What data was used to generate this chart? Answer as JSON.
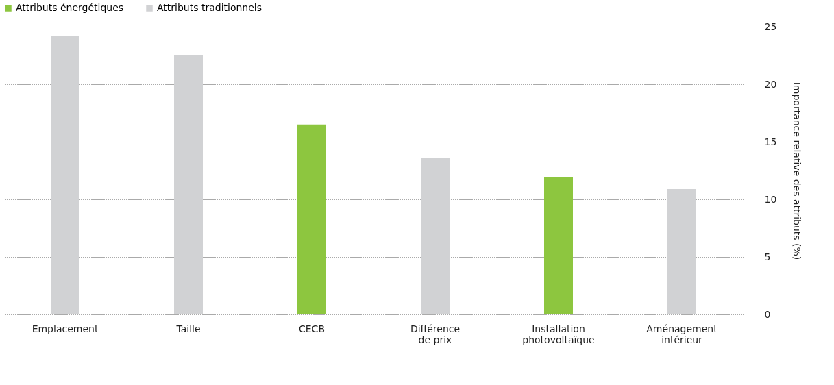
{
  "chart_data": {
    "type": "bar",
    "categories": [
      "Emplacement",
      "Taille",
      "CECB",
      "Différence de prix",
      "Installation photovoltaïque",
      "Aménagement intérieur"
    ],
    "series": [
      {
        "name": "Attributs énergétiques",
        "color": "#8dc63f",
        "values": [
          null,
          null,
          16.5,
          null,
          11.9,
          null
        ]
      },
      {
        "name": "Attributs traditionnels",
        "color": "#d1d2d4",
        "values": [
          24.2,
          22.5,
          null,
          13.6,
          null,
          10.9
        ]
      }
    ],
    "ylabel": "Importance relative des attributs  (%)",
    "ylim": [
      0,
      25
    ],
    "yticks": [
      0,
      5,
      10,
      15,
      20,
      25
    ],
    "grid": "y",
    "legend": "top left"
  }
}
